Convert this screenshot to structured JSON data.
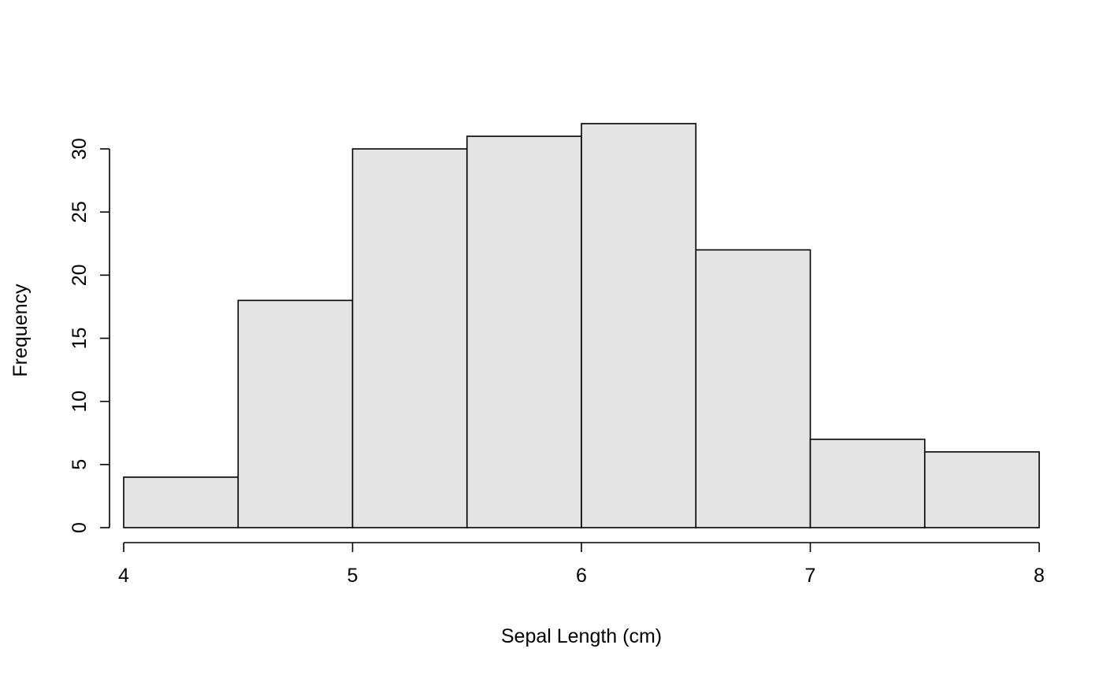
{
  "chart_data": {
    "type": "bar",
    "subtype": "histogram",
    "bin_edges": [
      4,
      4.5,
      5,
      5.5,
      6,
      6.5,
      7,
      7.5,
      8
    ],
    "values": [
      4,
      18,
      30,
      31,
      32,
      22,
      7,
      6
    ],
    "xlabel": "Sepal Length (cm)",
    "ylabel": "Frequency",
    "xlim": [
      4,
      8
    ],
    "ylim": [
      0,
      32
    ],
    "x_ticks": [
      "4",
      "5",
      "6",
      "7",
      "8"
    ],
    "y_ticks": [
      "0",
      "5",
      "10",
      "15",
      "20",
      "25",
      "30"
    ],
    "grid": false,
    "legend": "none",
    "bar_color": "#e4e4e4",
    "edge_color": "#000000"
  }
}
